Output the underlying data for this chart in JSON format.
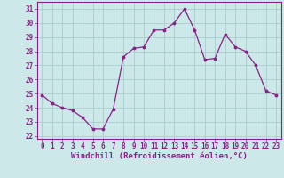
{
  "x": [
    0,
    1,
    2,
    3,
    4,
    5,
    6,
    7,
    8,
    9,
    10,
    11,
    12,
    13,
    14,
    15,
    16,
    17,
    18,
    19,
    20,
    21,
    22,
    23
  ],
  "y": [
    24.9,
    24.3,
    24.0,
    23.8,
    23.3,
    22.5,
    22.5,
    23.9,
    27.6,
    28.2,
    28.3,
    29.5,
    29.5,
    30.0,
    31.0,
    29.5,
    27.4,
    27.5,
    29.2,
    28.3,
    28.0,
    27.0,
    25.2,
    24.9
  ],
  "line_color": "#882288",
  "marker": ".",
  "marker_size": 3.5,
  "bg_color": "#cce8e8",
  "grid_color": "#aacccc",
  "xlabel": "Windchill (Refroidissement éolien,°C)",
  "ylim": [
    21.8,
    31.5
  ],
  "xlim": [
    -0.5,
    23.5
  ],
  "yticks": [
    22,
    23,
    24,
    25,
    26,
    27,
    28,
    29,
    30,
    31
  ],
  "xticks": [
    0,
    1,
    2,
    3,
    4,
    5,
    6,
    7,
    8,
    9,
    10,
    11,
    12,
    13,
    14,
    15,
    16,
    17,
    18,
    19,
    20,
    21,
    22,
    23
  ],
  "tick_label_size": 5.5,
  "xlabel_size": 6.5,
  "text_color": "#882288"
}
